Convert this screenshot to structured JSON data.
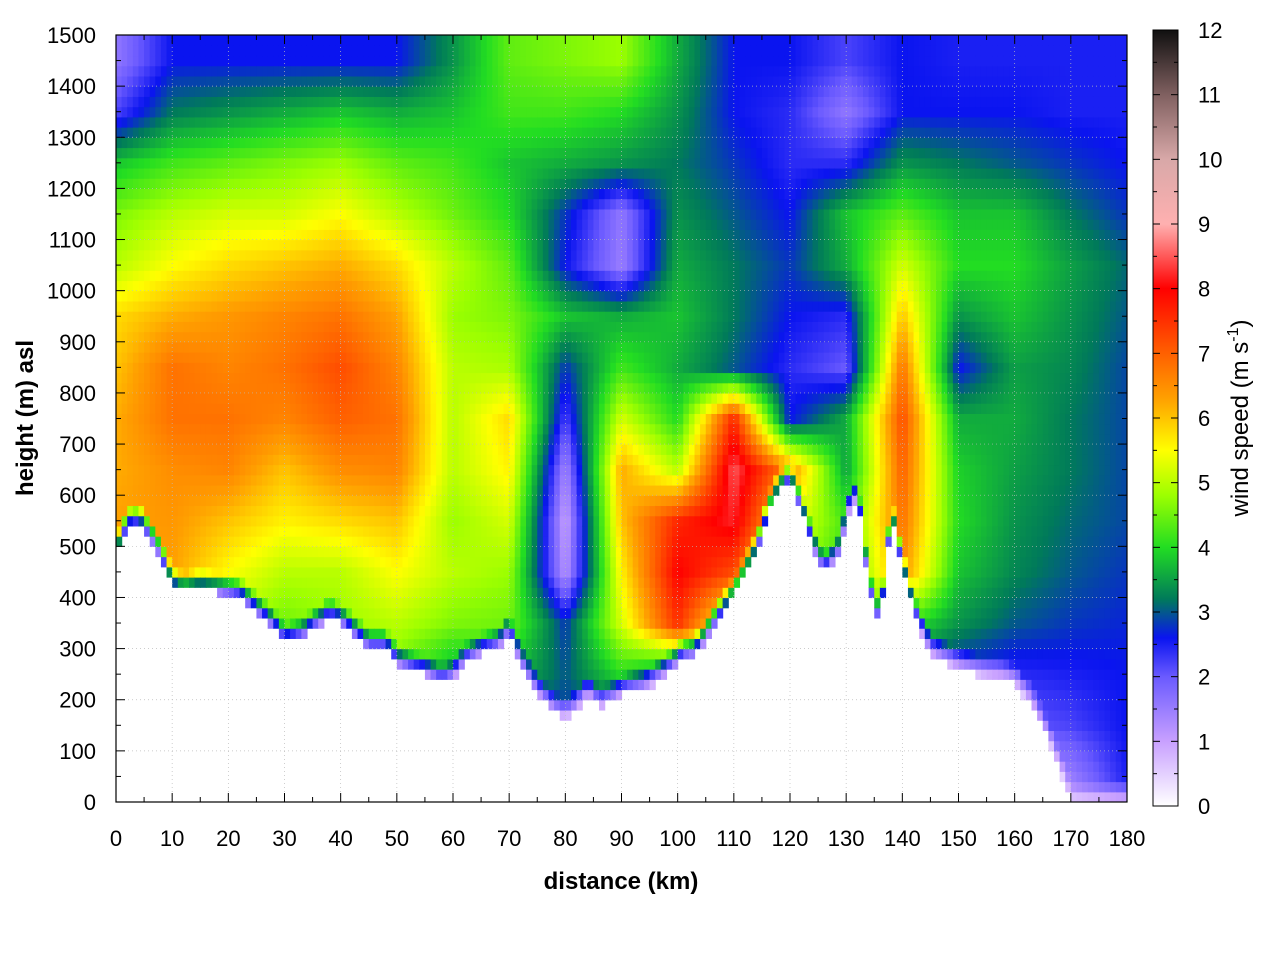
{
  "chart_data": {
    "type": "heatmap",
    "title": "",
    "xlabel": "distance (km)",
    "ylabel": "height (m) asl",
    "colorbar_label_main": "wind speed (m s",
    "colorbar_label_sup": "-1",
    "colorbar_label_close": ")",
    "xlim": [
      0,
      180
    ],
    "ylim": [
      0,
      1500
    ],
    "clim": [
      0,
      12
    ],
    "x_ticks": [
      "0",
      "10",
      "20",
      "30",
      "40",
      "50",
      "60",
      "70",
      "80",
      "90",
      "100",
      "110",
      "120",
      "130",
      "140",
      "150",
      "160",
      "170",
      "180"
    ],
    "y_ticks": [
      "0",
      "100",
      "200",
      "300",
      "400",
      "500",
      "600",
      "700",
      "800",
      "900",
      "1000",
      "1100",
      "1200",
      "1300",
      "1400",
      "1500"
    ],
    "c_ticks": [
      "0",
      "1",
      "2",
      "3",
      "4",
      "5",
      "6",
      "7",
      "8",
      "9",
      "10",
      "11",
      "12"
    ],
    "grid": true,
    "colormap": [
      {
        "v": 0,
        "color": "#ffffff"
      },
      {
        "v": 1,
        "color": "#c8a0ff"
      },
      {
        "v": 2,
        "color": "#6a5aff"
      },
      {
        "v": 2.6,
        "color": "#0a14f0"
      },
      {
        "v": 3.2,
        "color": "#007a5a"
      },
      {
        "v": 4,
        "color": "#22dd22"
      },
      {
        "v": 4.8,
        "color": "#9cff00"
      },
      {
        "v": 5.5,
        "color": "#ffff00"
      },
      {
        "v": 6.3,
        "color": "#ffa000"
      },
      {
        "v": 7,
        "color": "#ff6000"
      },
      {
        "v": 8,
        "color": "#ff0000"
      },
      {
        "v": 9,
        "color": "#ffb0b0"
      },
      {
        "v": 10,
        "color": "#d8a8a8"
      },
      {
        "v": 11,
        "color": "#806060"
      },
      {
        "v": 12,
        "color": "#101010"
      }
    ],
    "terrain_km": [
      0,
      2,
      4,
      6,
      8,
      10,
      12,
      15,
      18,
      22,
      25,
      28,
      30,
      33,
      36,
      38,
      40,
      42,
      45,
      48,
      50,
      53,
      55,
      58,
      60,
      62,
      65,
      68,
      70,
      72,
      75,
      78,
      80,
      82,
      84,
      86,
      88,
      90,
      94,
      97,
      99,
      100,
      101,
      102,
      104,
      106,
      110,
      114,
      116,
      118,
      120,
      122,
      124,
      126,
      127,
      129,
      130,
      132,
      134,
      136,
      138,
      140,
      142,
      145,
      150,
      155,
      158,
      160,
      163,
      166,
      168,
      170,
      172,
      174,
      176,
      178,
      180
    ],
    "terrain_m": [
      480,
      540,
      545,
      520,
      480,
      420,
      410,
      415,
      410,
      400,
      370,
      340,
      310,
      320,
      345,
      360,
      350,
      330,
      300,
      300,
      270,
      255,
      250,
      230,
      240,
      270,
      290,
      300,
      330,
      270,
      210,
      175,
      165,
      180,
      210,
      185,
      195,
      210,
      220,
      240,
      260,
      270,
      285,
      280,
      300,
      340,
      400,
      490,
      560,
      610,
      630,
      570,
      500,
      450,
      460,
      490,
      560,
      600,
      420,
      340,
      560,
      460,
      370,
      290,
      260,
      245,
      240,
      230,
      190,
      120,
      60,
      0,
      0,
      0,
      0,
      0,
      0
    ],
    "top_m": 1500,
    "rows": [
      {
        "h": 50,
        "speeds": [
          1.5,
          1.5,
          1.5,
          1.5,
          1.5,
          1.5,
          1.5,
          1.5,
          1.5,
          1.5,
          1.5,
          1.5,
          1.5,
          1.5,
          1.5,
          1.5,
          1.0,
          1.5,
          2.5
        ]
      },
      {
        "h": 150,
        "speeds": [
          3.0,
          3.0,
          3.0,
          3.0,
          3.0,
          3.0,
          3.0,
          3.0,
          2.8,
          2.5,
          2.5,
          2.5,
          2.5,
          2.5,
          2.5,
          2.5,
          2.0,
          2.2,
          2.6
        ]
      },
      {
        "h": 250,
        "speeds": [
          4.0,
          4.0,
          4.0,
          4.0,
          4.5,
          4.5,
          3.5,
          3.8,
          3.0,
          4.0,
          3.0,
          3.0,
          3.0,
          3.0,
          3.0,
          2.6,
          2.4,
          2.5,
          2.6
        ]
      },
      {
        "h": 350,
        "speeds": [
          5.0,
          5.5,
          5.0,
          4.5,
          4.8,
          5.0,
          4.6,
          4.5,
          2.8,
          5.2,
          7.5,
          5.0,
          4.0,
          4.0,
          4.2,
          3.4,
          3.0,
          2.8,
          2.7
        ]
      },
      {
        "h": 450,
        "speeds": [
          6.2,
          6.3,
          5.5,
          5.0,
          5.0,
          5.5,
          5.0,
          4.8,
          1.2,
          5.6,
          8.0,
          7.2,
          5.0,
          4.0,
          6.5,
          3.8,
          3.3,
          3.0,
          2.8
        ]
      },
      {
        "h": 550,
        "speeds": [
          6.3,
          6.4,
          6.0,
          5.6,
          5.8,
          6.0,
          4.8,
          5.2,
          1.0,
          6.0,
          7.6,
          8.2,
          5.5,
          4.2,
          6.8,
          4.0,
          3.4,
          3.1,
          2.9
        ]
      },
      {
        "h": 650,
        "speeds": [
          6.2,
          6.5,
          6.6,
          6.0,
          6.5,
          6.6,
          5.0,
          5.6,
          1.4,
          6.2,
          5.0,
          8.5,
          6.5,
          3.5,
          7.0,
          3.9,
          3.5,
          3.2,
          2.9
        ]
      },
      {
        "h": 750,
        "speeds": [
          6.2,
          6.8,
          6.8,
          6.6,
          7.0,
          6.8,
          5.0,
          5.8,
          2.2,
          5.2,
          4.0,
          7.6,
          2.6,
          3.6,
          7.2,
          3.6,
          3.6,
          3.2,
          2.9
        ]
      },
      {
        "h": 850,
        "speeds": [
          6.0,
          6.8,
          6.6,
          6.8,
          7.2,
          6.6,
          5.0,
          4.9,
          2.8,
          4.2,
          3.6,
          3.0,
          2.4,
          2.0,
          6.8,
          2.6,
          3.5,
          3.3,
          2.9
        ]
      },
      {
        "h": 950,
        "speeds": [
          5.8,
          6.2,
          6.4,
          6.6,
          6.8,
          6.3,
          4.8,
          4.6,
          3.8,
          3.6,
          3.8,
          3.2,
          2.6,
          2.4,
          6.0,
          3.4,
          3.8,
          3.4,
          3.0
        ]
      },
      {
        "h": 1050,
        "speeds": [
          5.0,
          5.5,
          5.8,
          6.0,
          6.2,
          5.8,
          5.0,
          4.4,
          2.6,
          1.5,
          3.6,
          3.2,
          2.8,
          3.6,
          5.2,
          4.0,
          4.0,
          3.5,
          3.1
        ]
      },
      {
        "h": 1150,
        "speeds": [
          4.6,
          5.0,
          5.2,
          5.2,
          5.5,
          5.0,
          4.5,
          4.0,
          2.8,
          1.6,
          3.4,
          3.0,
          2.6,
          3.8,
          4.4,
          3.8,
          3.8,
          3.2,
          2.8
        ]
      },
      {
        "h": 1250,
        "speeds": [
          3.8,
          4.2,
          4.4,
          4.6,
          4.8,
          4.4,
          4.2,
          3.8,
          3.6,
          3.4,
          3.2,
          2.8,
          2.4,
          2.4,
          3.4,
          3.2,
          3.0,
          2.8,
          2.6
        ]
      },
      {
        "h": 1350,
        "speeds": [
          2.2,
          3.2,
          3.4,
          3.6,
          3.8,
          3.6,
          3.8,
          4.2,
          4.2,
          4.0,
          3.4,
          2.6,
          2.4,
          1.6,
          2.6,
          2.6,
          2.6,
          2.5,
          2.5
        ]
      },
      {
        "h": 1450,
        "speeds": [
          1.6,
          2.6,
          2.6,
          2.6,
          2.6,
          2.6,
          3.4,
          4.4,
          4.6,
          4.8,
          3.6,
          2.6,
          2.6,
          2.2,
          2.6,
          2.5,
          2.5,
          2.5,
          2.5
        ]
      }
    ]
  }
}
